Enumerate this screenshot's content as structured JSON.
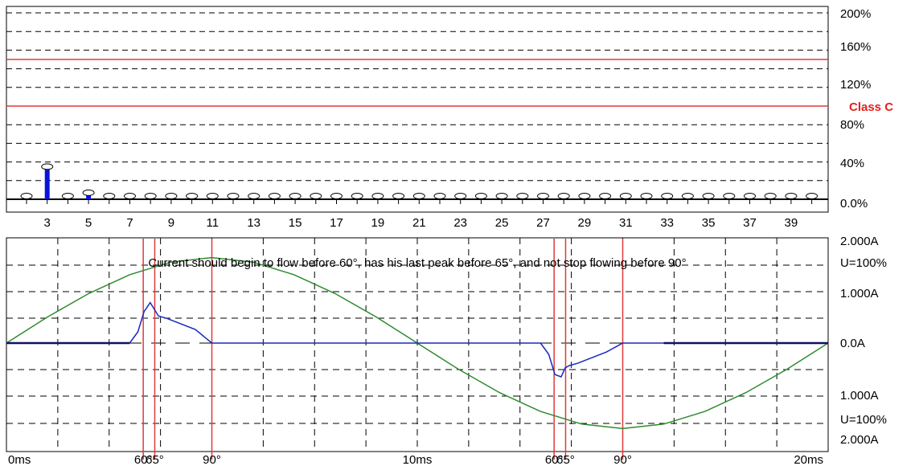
{
  "colors": {
    "grid": "#000000",
    "limit_line": "#e03a3a",
    "harmonic_bar": "#0a14d8",
    "current_wave": "#1828c0",
    "voltage_wave": "#2e8b2e",
    "background": "#ffffff"
  },
  "chart_data": [
    {
      "type": "bar",
      "title": "",
      "xlabel": "",
      "ylabel": "",
      "categories": [
        2,
        3,
        4,
        5,
        6,
        7,
        8,
        9,
        10,
        11,
        12,
        13,
        14,
        15,
        16,
        17,
        18,
        19,
        20,
        21,
        22,
        23,
        24,
        25,
        26,
        27,
        28,
        29,
        30,
        31,
        32,
        33,
        34,
        35,
        36,
        37,
        38,
        39,
        40
      ],
      "x_tick_labels": [
        "3",
        "5",
        "7",
        "9",
        "11",
        "13",
        "15",
        "17",
        "19",
        "21",
        "23",
        "25",
        "27",
        "29",
        "31",
        "33",
        "35",
        "37",
        "39"
      ],
      "values": [
        0,
        35,
        0,
        7,
        0,
        0,
        0,
        0,
        0,
        0,
        0,
        0,
        0,
        0,
        0,
        0,
        0,
        0,
        0,
        0,
        0,
        0,
        0,
        0,
        0,
        0,
        0,
        0,
        0,
        0,
        0,
        0,
        0,
        0,
        0,
        0,
        0,
        0,
        0
      ],
      "y_tick_labels": [
        "200%",
        "160%",
        "120%",
        "80%",
        "40%",
        "0.0%"
      ],
      "ylim": [
        0,
        200
      ],
      "limit_lines": [
        150,
        100
      ],
      "limit_label": "Class C",
      "grid": "dashed horizontal"
    },
    {
      "type": "line",
      "title": "Current should begin to flow before 60°, has his last peak before 65°, and not stop flowing before 90°",
      "xlim": [
        0,
        20
      ],
      "ylim": [
        -2,
        2
      ],
      "x_tick_labels": [
        "0ms",
        "10ms",
        "20ms"
      ],
      "angle_markers": [
        "60°",
        "65°",
        "90°",
        "60°",
        "65°",
        "90°"
      ],
      "y_tick_labels": [
        "2.000A",
        "U=100%",
        "1.000A",
        "0.0A",
        "1.000A",
        "U=100%",
        "2.000A"
      ],
      "series": [
        {
          "name": "",
          "color": "voltage",
          "x": [
            0,
            1,
            2,
            3,
            4,
            5,
            6,
            7,
            8,
            9,
            10,
            11,
            12,
            13,
            14,
            15,
            16,
            17,
            18,
            19,
            20
          ],
          "y": [
            0,
            0.58,
            1.1,
            1.52,
            1.8,
            1.9,
            1.8,
            1.52,
            1.1,
            0.58,
            0,
            -0.58,
            -1.1,
            -1.52,
            -1.8,
            -1.9,
            -1.8,
            -1.52,
            -1.1,
            -0.58,
            0
          ]
        },
        {
          "name": "",
          "color": "current",
          "x": [
            0,
            3.0,
            3.2,
            3.35,
            3.5,
            3.6,
            3.7,
            3.9,
            4.6,
            5.0,
            6.0,
            9,
            10,
            13.0,
            13.2,
            13.35,
            13.5,
            13.6,
            13.7,
            13.9,
            14.6,
            15.0,
            16,
            18,
            20
          ],
          "y": [
            0,
            0,
            0.25,
            0.7,
            0.9,
            0.75,
            0.6,
            0.55,
            0.3,
            0,
            0,
            0,
            0,
            0,
            -0.25,
            -0.7,
            -0.75,
            -0.55,
            -0.5,
            -0.45,
            -0.2,
            0,
            0,
            0,
            0
          ]
        }
      ],
      "grid": "dashed both"
    }
  ]
}
